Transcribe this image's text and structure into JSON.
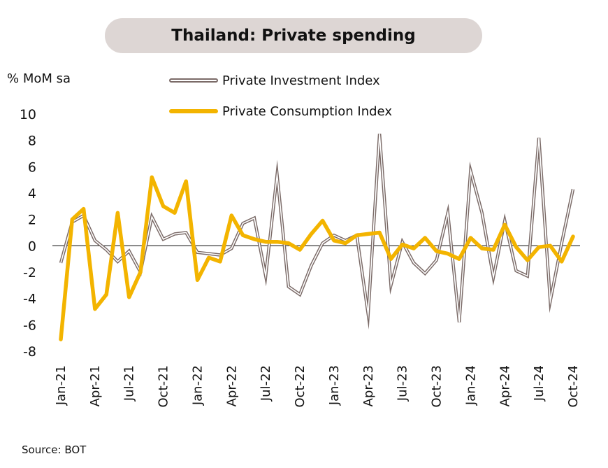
{
  "chart_data": {
    "type": "line",
    "title": "Thailand: Private spending",
    "ylabel": "% MoM sa",
    "source": "Source: BOT",
    "ylim": [
      -8,
      10
    ],
    "yticks": [
      "10",
      "8",
      "6",
      "4",
      "2",
      "0",
      "-2",
      "-4",
      "-6",
      "-8"
    ],
    "ytick_values": [
      10,
      8,
      6,
      4,
      2,
      0,
      -2,
      -4,
      -6,
      -8
    ],
    "x": [
      "Jan-21",
      "Feb-21",
      "Mar-21",
      "Apr-21",
      "May-21",
      "Jun-21",
      "Jul-21",
      "Aug-21",
      "Sep-21",
      "Oct-21",
      "Nov-21",
      "Dec-21",
      "Jan-22",
      "Feb-22",
      "Mar-22",
      "Apr-22",
      "May-22",
      "Jun-22",
      "Jul-22",
      "Aug-22",
      "Sep-22",
      "Oct-22",
      "Nov-22",
      "Dec-22",
      "Jan-23",
      "Feb-23",
      "Mar-23",
      "Apr-23",
      "May-23",
      "Jun-23",
      "Jul-23",
      "Aug-23",
      "Sep-23",
      "Oct-23",
      "Nov-23",
      "Dec-23",
      "Jan-24",
      "Feb-24",
      "Mar-24",
      "Apr-24",
      "May-24",
      "Jun-24",
      "Jul-24",
      "Aug-24",
      "Sep-24",
      "Oct-24"
    ],
    "xtick_labels": [
      "Jan-21",
      "Apr-21",
      "Jul-21",
      "Oct-21",
      "Jan-22",
      "Apr-22",
      "Jul-22",
      "Oct-22",
      "Jan-23",
      "Apr-23",
      "Jul-23",
      "Oct-23",
      "Jan-24",
      "Apr-24",
      "Jul-24",
      "Oct-24"
    ],
    "series": [
      {
        "name": "Private Investment Index",
        "color": "#7b6b68",
        "style": "outlined",
        "values": [
          -1.3,
          1.8,
          2.3,
          0.4,
          -0.3,
          -1.2,
          -0.4,
          -2.0,
          2.2,
          0.5,
          0.9,
          1.0,
          -0.5,
          -0.6,
          -0.7,
          -0.2,
          1.7,
          2.1,
          -2.3,
          5.4,
          -3.1,
          -3.7,
          -1.5,
          0.2,
          0.8,
          0.4,
          0.8,
          -5.2,
          8.5,
          -3.0,
          0.3,
          -1.3,
          -2.1,
          -1.1,
          2.5,
          -5.8,
          5.7,
          2.5,
          -2.4,
          1.9,
          -1.9,
          -2.3,
          8.2,
          -4.2,
          0.2,
          4.3
        ]
      },
      {
        "name": "Private Consumption Index",
        "color": "#f3b400",
        "style": "solid",
        "values": [
          -7.1,
          2.0,
          2.8,
          -4.8,
          -3.7,
          2.5,
          -3.9,
          -2.0,
          5.2,
          3.0,
          2.5,
          4.9,
          -2.6,
          -0.9,
          -1.2,
          2.3,
          0.8,
          0.5,
          0.3,
          0.3,
          0.2,
          -0.3,
          0.9,
          1.9,
          0.4,
          0.2,
          0.8,
          0.9,
          1.0,
          -1.0,
          0.1,
          -0.2,
          0.6,
          -0.4,
          -0.6,
          -1.0,
          0.6,
          -0.2,
          -0.3,
          1.6,
          -0.1,
          -1.1,
          -0.1,
          0.0,
          -1.2,
          0.7
        ]
      }
    ],
    "grid": false,
    "legend_position": "top"
  }
}
